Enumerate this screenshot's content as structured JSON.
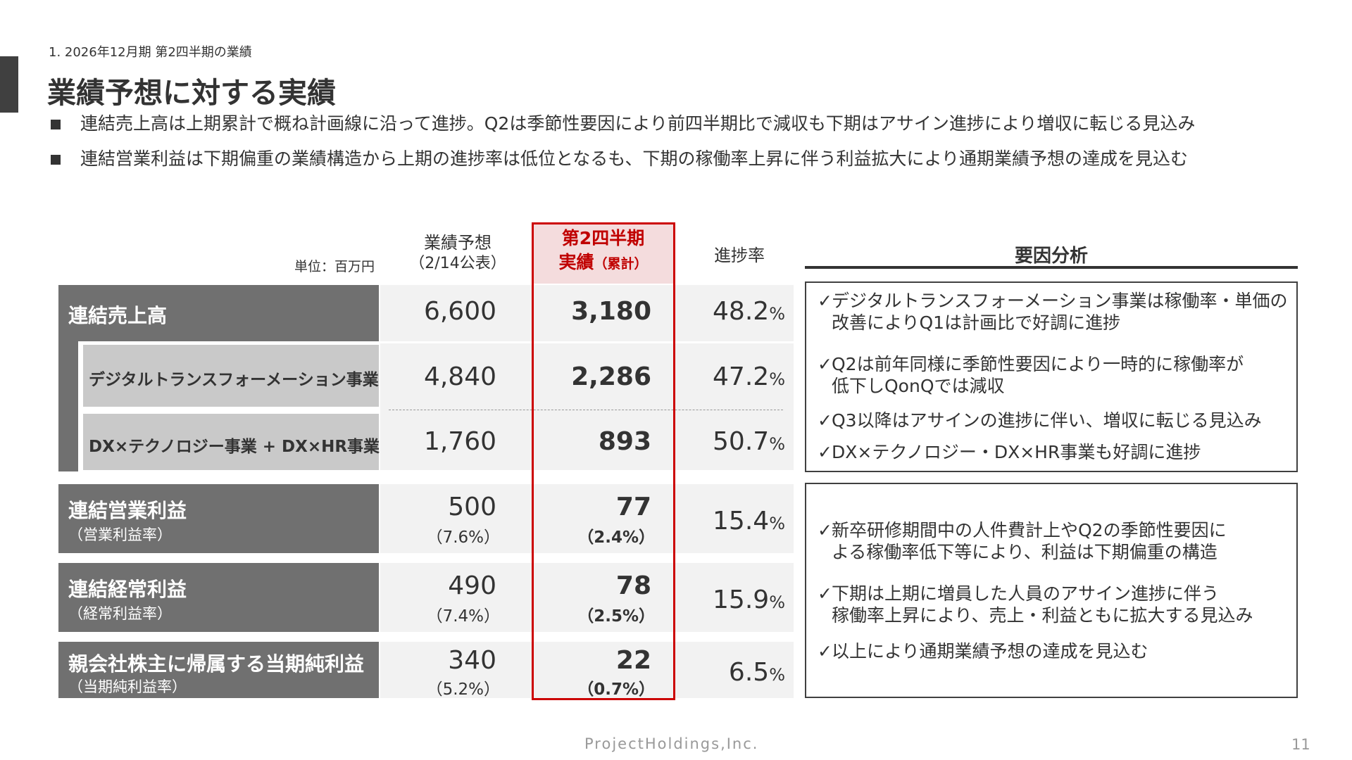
{
  "header": {
    "section_label": "1. 2026年12月期 第2四半期の業績",
    "page_title": "業績予想に対する実績"
  },
  "bullets": [
    "連結売上高は上期累計で概ね計画線に沿って進捗。Q2は季節性要因により前四半期比で減収も下期はアサイン進捗により増収に転じる見込み",
    "連結営業利益は下期偏重の業績構造から上期の進捗率は低位となるも、下期の稼働率上昇に伴う利益拡大により通期業績予想の達成を見込む"
  ],
  "table": {
    "unit": "単位：百万円",
    "col_forecast_line1": "業績予想",
    "col_forecast_line2": "（2/14公表）",
    "col_actual_line1": "第2四半期",
    "col_actual_line2": "実績",
    "col_actual_line2_small": "（累計）",
    "col_progress": "進捗率",
    "rows": [
      {
        "label": "連結売上高",
        "forecast": "6,600",
        "actual": "3,180",
        "progress": "48.2",
        "pct": "%"
      },
      {
        "label": "デジタルトランスフォーメーション事業",
        "forecast": "4,840",
        "actual": "2,286",
        "progress": "47.2",
        "pct": "%"
      },
      {
        "label": "DX×テクノロジー事業 + DX×HR事業",
        "forecast": "1,760",
        "actual": "893",
        "progress": "50.7",
        "pct": "%"
      },
      {
        "label": "連結営業利益",
        "sublabel": "（営業利益率）",
        "forecast": "500",
        "forecast_rate": "（7.6%）",
        "actual": "77",
        "actual_rate": "（2.4%）",
        "progress": "15.4",
        "pct": "%"
      },
      {
        "label": "連結経常利益",
        "sublabel": "（経常利益率）",
        "forecast": "490",
        "forecast_rate": "（7.4%）",
        "actual": "78",
        "actual_rate": "（2.5%）",
        "progress": "15.9",
        "pct": "%"
      },
      {
        "label": "親会社株主に帰属する当期純利益",
        "sublabel": "（当期純利益率）",
        "forecast": "340",
        "forecast_rate": "（5.2%）",
        "actual": "22",
        "actual_rate": "（0.7%）",
        "progress": "6.5",
        "pct": "%"
      }
    ]
  },
  "analysis": {
    "title": "要因分析",
    "check": "✓",
    "revenue_points": [
      {
        "line1": "デジタルトランスフォーメーション事業は稼働率・単価の",
        "line2": "改善によりQ1は計画比で好調に進捗"
      },
      {
        "line1": "Q2は前年同様に季節性要因により一時的に稼働率が",
        "line2": "低下しQonQでは減収"
      },
      {
        "line1": "Q3以降はアサインの進捗に伴い、増収に転じる見込み",
        "line2": ""
      },
      {
        "line1": "DX×テクノロジー・DX×HR事業も好調に進捗",
        "line2": ""
      }
    ],
    "profit_points": [
      {
        "line1": "新卒研修期間中の人件費計上やQ2の季節性要因に",
        "line2": "よる稼働率低下等により、利益は下期偏重の構造"
      },
      {
        "line1": "下期は上期に増員した人員のアサイン進捗に伴う",
        "line2": "稼働率上昇により、売上・利益ともに拡大する見込み"
      },
      {
        "line1": "以上により通期業績予想の達成を見込む",
        "line2": ""
      }
    ]
  },
  "footer": {
    "company": "ProjectHoldings,Inc.",
    "page_number": "11"
  }
}
